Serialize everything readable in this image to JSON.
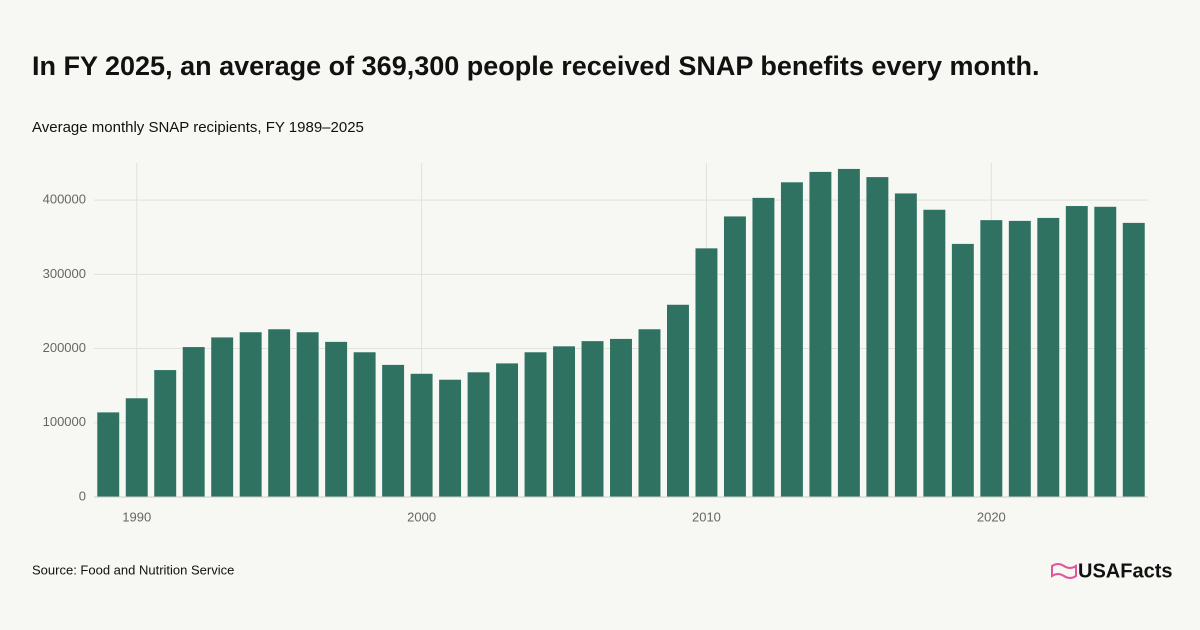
{
  "chart_data": {
    "type": "bar",
    "title": "In FY 2025, an average of 369,300 people received SNAP benefits every month.",
    "subtitle": "Average monthly SNAP recipients, FY 1989–2025",
    "source": "Source: Food and Nutrition Service",
    "brand": "USAFacts",
    "color": "#2f7262",
    "grid": true,
    "x": [
      1989,
      1990,
      1991,
      1992,
      1993,
      1994,
      1995,
      1996,
      1997,
      1998,
      1999,
      2000,
      2001,
      2002,
      2003,
      2004,
      2005,
      2006,
      2007,
      2008,
      2009,
      2010,
      2011,
      2012,
      2013,
      2014,
      2015,
      2016,
      2017,
      2018,
      2019,
      2020,
      2021,
      2022,
      2023,
      2024,
      2025
    ],
    "values": [
      114000,
      133000,
      171000,
      202000,
      215000,
      222000,
      226000,
      222000,
      209000,
      195000,
      178000,
      166000,
      158000,
      168000,
      180000,
      195000,
      203000,
      210000,
      213000,
      226000,
      259000,
      335000,
      378000,
      403000,
      424000,
      438000,
      442000,
      431000,
      409000,
      387000,
      341000,
      373000,
      372000,
      376000,
      392000,
      391000,
      369300
    ],
    "xlim": [
      1988.5,
      2025.5
    ],
    "xticks": [
      1990,
      2000,
      2010,
      2020
    ],
    "ylim": [
      0,
      450000
    ],
    "yticks": [
      0,
      100000,
      200000,
      300000,
      400000
    ]
  }
}
